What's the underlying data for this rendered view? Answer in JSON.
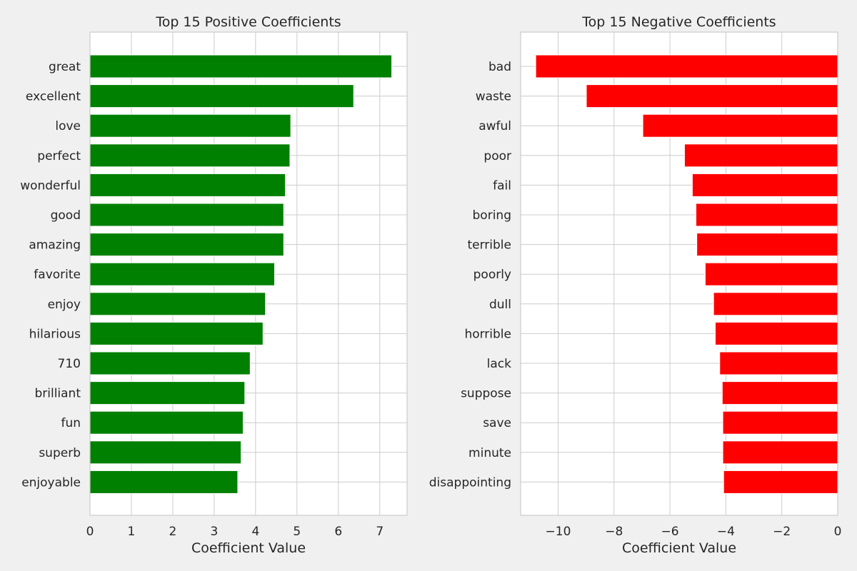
{
  "chart_data": [
    {
      "type": "bar",
      "orientation": "horizontal",
      "title": "Top 15 Positive Coefficients",
      "xlabel": "Coefficient Value",
      "ylabel": "",
      "xlim": [
        0,
        7.66
      ],
      "xticks": [
        0,
        1,
        2,
        3,
        4,
        5,
        6,
        7
      ],
      "grid": true,
      "color": "#008000",
      "categories": [
        "great",
        "excellent",
        "love",
        "perfect",
        "wonderful",
        "good",
        "amazing",
        "favorite",
        "enjoy",
        "hilarious",
        "710",
        "brilliant",
        "fun",
        "superb",
        "enjoyable"
      ],
      "values": [
        7.29,
        6.37,
        4.85,
        4.83,
        4.72,
        4.68,
        4.68,
        4.46,
        4.24,
        4.18,
        3.87,
        3.74,
        3.7,
        3.65,
        3.57
      ]
    },
    {
      "type": "bar",
      "orientation": "horizontal",
      "title": "Top 15 Negative Coefficients",
      "xlabel": "Coefficient Value",
      "ylabel": "",
      "xlim": [
        -11.34,
        0
      ],
      "xticks": [
        -10,
        -8,
        -6,
        -4,
        -2,
        0
      ],
      "grid": true,
      "color": "#ff0000",
      "categories": [
        "bad",
        "waste",
        "awful",
        "poor",
        "fail",
        "boring",
        "terrible",
        "poorly",
        "dull",
        "horrible",
        "lack",
        "suppose",
        "save",
        "minute",
        "disappointing"
      ],
      "values": [
        -10.8,
        -8.99,
        -6.97,
        -5.48,
        -5.2,
        -5.07,
        -5.04,
        -4.74,
        -4.44,
        -4.38,
        -4.22,
        -4.13,
        -4.11,
        -4.11,
        -4.08
      ]
    }
  ]
}
